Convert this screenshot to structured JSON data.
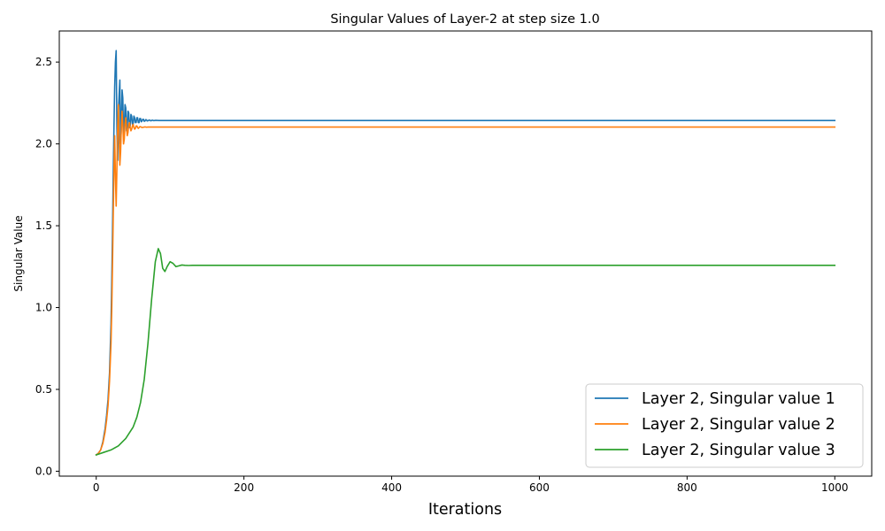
{
  "chart_data": {
    "type": "line",
    "title": "Singular Values of Layer-2 at step size 1.0",
    "xlabel": "Iterations",
    "ylabel": "Singular Value",
    "xlim": [
      -50,
      1050
    ],
    "ylim": [
      -0.03,
      2.69
    ],
    "xticks": [
      0,
      200,
      400,
      600,
      800,
      1000
    ],
    "xtick_labels": [
      "0",
      "200",
      "400",
      "600",
      "800",
      "1000"
    ],
    "yticks": [
      0.0,
      0.5,
      1.0,
      1.5,
      2.0,
      2.5
    ],
    "ytick_labels": [
      "0.0",
      "0.5",
      "1.0",
      "1.5",
      "2.0",
      "2.5"
    ],
    "grid": false,
    "legend_position": "lower-right",
    "series": [
      {
        "name": "Layer 2, Singular value 1",
        "color": "#1f77b4",
        "x": [
          0,
          3,
          6,
          9,
          12,
          14,
          16,
          18,
          20,
          21,
          22,
          23,
          24,
          25,
          26,
          27,
          28,
          29,
          30,
          31,
          32,
          33,
          34,
          35,
          36,
          37,
          38,
          39,
          40,
          41,
          42,
          43,
          44,
          45,
          46,
          47,
          48,
          49,
          50,
          51,
          52,
          53,
          54,
          55,
          56,
          57,
          58,
          59,
          60,
          61,
          62,
          63,
          64,
          65,
          66,
          67,
          68,
          69,
          70,
          72,
          74,
          76,
          78,
          80,
          85,
          90,
          100,
          1000
        ],
        "y": [
          0.1,
          0.11,
          0.13,
          0.18,
          0.26,
          0.34,
          0.44,
          0.6,
          0.9,
          1.15,
          1.45,
          1.8,
          2.1,
          2.35,
          2.5,
          2.57,
          2.1,
          1.9,
          2.2,
          2.3,
          2.39,
          2.0,
          2.1,
          2.33,
          2.28,
          2.05,
          2.1,
          2.24,
          2.22,
          2.08,
          2.1,
          2.2,
          2.19,
          2.1,
          2.11,
          2.18,
          2.17,
          2.12,
          2.12,
          2.17,
          2.16,
          2.13,
          2.13,
          2.16,
          2.16,
          2.13,
          2.13,
          2.155,
          2.155,
          2.135,
          2.14,
          2.15,
          2.15,
          2.138,
          2.14,
          2.148,
          2.147,
          2.14,
          2.142,
          2.146,
          2.141,
          2.145,
          2.142,
          2.144,
          2.143,
          2.143,
          2.143,
          2.143
        ]
      },
      {
        "name": "Layer 2, Singular value 2",
        "color": "#ff7f0e",
        "x": [
          0,
          3,
          6,
          9,
          12,
          14,
          16,
          18,
          20,
          21,
          22,
          23,
          24,
          25,
          26,
          27,
          28,
          29,
          30,
          31,
          32,
          33,
          34,
          35,
          36,
          37,
          38,
          39,
          40,
          41,
          42,
          43,
          44,
          45,
          46,
          47,
          48,
          49,
          50,
          51,
          52,
          53,
          54,
          55,
          56,
          57,
          58,
          59,
          60,
          62,
          64,
          66,
          68,
          70,
          75,
          80,
          90,
          100,
          1000
        ],
        "y": [
          0.1,
          0.11,
          0.13,
          0.17,
          0.24,
          0.31,
          0.4,
          0.55,
          0.78,
          0.98,
          1.25,
          1.55,
          1.85,
          2.05,
          1.8,
          1.62,
          1.85,
          2.1,
          2.24,
          2.05,
          1.87,
          1.95,
          2.1,
          2.2,
          2.12,
          2.0,
          2.03,
          2.12,
          2.16,
          2.1,
          2.05,
          2.07,
          2.12,
          2.13,
          2.1,
          2.08,
          2.09,
          2.11,
          2.12,
          2.1,
          2.09,
          2.095,
          2.11,
          2.11,
          2.1,
          2.095,
          2.1,
          2.105,
          2.105,
          2.1,
          2.102,
          2.104,
          2.102,
          2.103,
          2.103,
          2.103,
          2.103,
          2.103,
          2.103
        ]
      },
      {
        "name": "Layer 2, Singular value 3",
        "color": "#2ca02c",
        "x": [
          0,
          10,
          20,
          30,
          40,
          50,
          55,
          60,
          65,
          70,
          75,
          80,
          84,
          87,
          90,
          93,
          96,
          100,
          104,
          108,
          112,
          116,
          120,
          125,
          130,
          140,
          150,
          1000
        ],
        "y": [
          0.1,
          0.115,
          0.13,
          0.155,
          0.2,
          0.27,
          0.33,
          0.42,
          0.56,
          0.78,
          1.05,
          1.28,
          1.36,
          1.33,
          1.24,
          1.22,
          1.25,
          1.28,
          1.27,
          1.25,
          1.255,
          1.26,
          1.258,
          1.257,
          1.258,
          1.258,
          1.258,
          1.258
        ]
      }
    ]
  }
}
